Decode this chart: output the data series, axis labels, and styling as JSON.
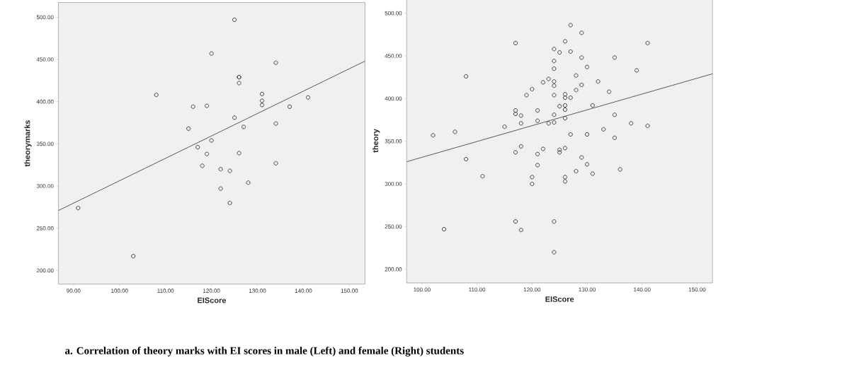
{
  "chart_data": [
    {
      "type": "scatter",
      "xlabel": "EIScore",
      "ylabel": "theorymarks",
      "xlim": [
        86.7,
        153.4
      ],
      "ylim": [
        183.9,
        517.4
      ],
      "xticks": [
        {
          "value": 90,
          "label": "90.00"
        },
        {
          "value": 100,
          "label": "100.00"
        },
        {
          "value": 110,
          "label": "110.00"
        },
        {
          "value": 120,
          "label": "120.00"
        },
        {
          "value": 130,
          "label": "130.00"
        },
        {
          "value": 140,
          "label": "140.00"
        },
        {
          "value": 150,
          "label": "150.00"
        }
      ],
      "yticks": [
        {
          "value": 200,
          "label": "200.00"
        },
        {
          "value": 250,
          "label": "250.00"
        },
        {
          "value": 300,
          "label": "300.00"
        },
        {
          "value": 350,
          "label": "350.00"
        },
        {
          "value": 400,
          "label": "400.00"
        },
        {
          "value": 450,
          "label": "450.00"
        },
        {
          "value": 500,
          "label": "500.00"
        }
      ],
      "annotations": [
        "a.   Correlation of theory marks with EI scores in male (Left) and female (Right) students"
      ],
      "series": [
        {
          "color": "#333333",
          "marker": "circle",
          "x": [
            91,
            103,
            108,
            115,
            116,
            117,
            118,
            119,
            119,
            120,
            120,
            122,
            122,
            124,
            124,
            125,
            125,
            126,
            126,
            126,
            126,
            127,
            128,
            131,
            131,
            131,
            134,
            134,
            134,
            137,
            141
          ],
          "values": [
            274,
            217,
            408,
            368,
            394,
            346,
            324,
            395,
            338,
            457,
            354,
            320,
            297,
            318,
            280,
            497,
            381,
            429,
            429,
            422,
            339,
            370,
            304,
            409,
            401,
            396,
            446,
            374,
            327,
            394,
            405
          ]
        },
        {
          "type": "line",
          "color": "#333333",
          "x": [
            86.7,
            153.4
          ],
          "values": [
            271,
            448
          ]
        }
      ]
    },
    {
      "type": "scatter",
      "xlabel": "EIScore",
      "ylabel": "theory",
      "xlim": [
        97.2,
        152.8
      ],
      "ylim": [
        184.0,
        517.1
      ],
      "xticks": [
        {
          "value": 100,
          "label": "100.00"
        },
        {
          "value": 110,
          "label": "110.00"
        },
        {
          "value": 120,
          "label": "120.00"
        },
        {
          "value": 130,
          "label": "130.00"
        },
        {
          "value": 140,
          "label": "140.00"
        },
        {
          "value": 150,
          "label": "150.00"
        }
      ],
      "yticks": [
        {
          "value": 200,
          "label": "200.00"
        },
        {
          "value": 250,
          "label": "250.00"
        },
        {
          "value": 300,
          "label": "300.00"
        },
        {
          "value": 350,
          "label": "350.00"
        },
        {
          "value": 400,
          "label": "400.00"
        },
        {
          "value": 450,
          "label": "450.00"
        },
        {
          "value": 500,
          "label": "500.00"
        }
      ],
      "series": [
        {
          "color": "#333333",
          "marker": "circle",
          "x": [
            102,
            104,
            106,
            108,
            108,
            111,
            115,
            117,
            117,
            117,
            117,
            117,
            118,
            118,
            118,
            118,
            119,
            120,
            120,
            120,
            121,
            121,
            121,
            121,
            122,
            122,
            123,
            123,
            124,
            124,
            124,
            124,
            124,
            124,
            124,
            124,
            124,
            124,
            125,
            125,
            125,
            125,
            126,
            126,
            126,
            126,
            126,
            126,
            126,
            126,
            126,
            127,
            127,
            127,
            127,
            128,
            128,
            128,
            129,
            129,
            129,
            129,
            130,
            130,
            130,
            131,
            131,
            132,
            133,
            134,
            135,
            135,
            135,
            136,
            138,
            139,
            141,
            141
          ],
          "values": [
            357,
            247,
            361,
            426,
            329,
            309,
            367,
            465,
            386,
            382,
            337,
            256,
            380,
            371,
            344,
            246,
            404,
            411,
            308,
            300,
            386,
            374,
            335,
            322,
            419,
            341,
            423,
            371,
            458,
            444,
            435,
            420,
            415,
            404,
            381,
            372,
            256,
            220,
            454,
            391,
            340,
            337,
            467,
            405,
            401,
            392,
            387,
            377,
            342,
            308,
            303,
            486,
            455,
            401,
            358,
            427,
            410,
            315,
            477,
            448,
            416,
            331,
            437,
            358,
            323,
            392,
            312,
            420,
            364,
            408,
            448,
            381,
            354,
            317,
            371,
            433,
            465,
            368
          ]
        },
        {
          "type": "line",
          "color": "#333333",
          "x": [
            97.2,
            152.8
          ],
          "values": [
            326,
            429
          ]
        }
      ]
    }
  ]
}
